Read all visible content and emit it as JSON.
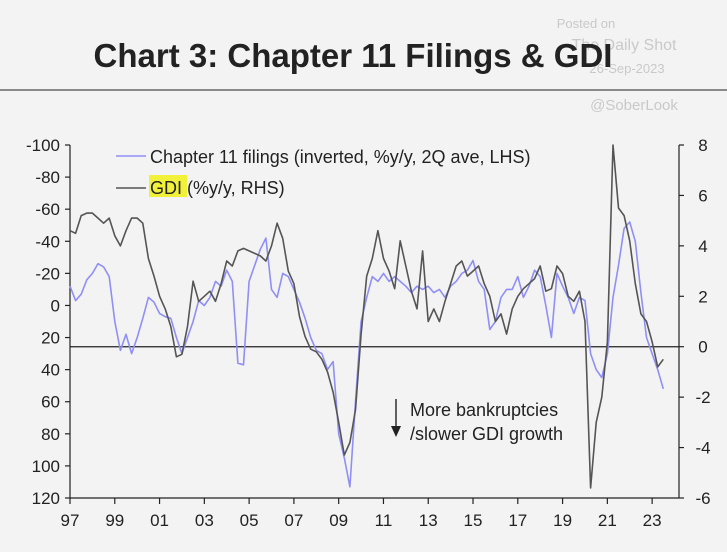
{
  "header": {
    "title": "Chart 3: Chapter 11 Filings & GDI",
    "watermark_line1": "Posted on",
    "watermark_line2": "The Daily Shot",
    "watermark_line3": "26-Sep-2023",
    "credit": "@SoberLook"
  },
  "chart_data": {
    "type": "line",
    "title": "Chart 3: Chapter 11 Filings & GDI",
    "x_tick_labels": [
      "97",
      "99",
      "01",
      "03",
      "05",
      "07",
      "09",
      "11",
      "13",
      "15",
      "17",
      "19",
      "21",
      "23"
    ],
    "x_ticks": [
      1997,
      1999,
      2001,
      2003,
      2005,
      2007,
      2009,
      2011,
      2013,
      2015,
      2017,
      2019,
      2021,
      2023
    ],
    "xlim": [
      1997,
      2024.2
    ],
    "left_axis": {
      "ylim": [
        -100,
        120
      ],
      "inverted": true,
      "ticks": [
        -100,
        -80,
        -60,
        -40,
        -20,
        0,
        20,
        40,
        60,
        80,
        100,
        120
      ],
      "tick_labels": [
        "-100",
        "-80",
        "-60",
        "-40",
        "-20",
        "0",
        "20",
        "40",
        "60",
        "80",
        "100",
        "120"
      ]
    },
    "right_axis": {
      "ylim": [
        -6,
        8
      ],
      "ticks": [
        -6,
        -4,
        -2,
        0,
        2,
        4,
        6,
        8
      ],
      "tick_labels": [
        "-6",
        "-4",
        "-2",
        "0",
        "2",
        "4",
        "6",
        "8"
      ]
    },
    "zero_line_right": 0,
    "series": [
      {
        "name": "Chapter 11 filings (inverted, %y/y, 2Q ave, LHS)",
        "axis": "left",
        "color": "#8f8ff5",
        "points": [
          [
            1997.0,
            -12
          ],
          [
            1997.25,
            -3
          ],
          [
            1997.5,
            -7
          ],
          [
            1997.75,
            -16
          ],
          [
            1998.0,
            -20
          ],
          [
            1998.25,
            -26
          ],
          [
            1998.5,
            -24
          ],
          [
            1998.75,
            -18
          ],
          [
            1999.0,
            10
          ],
          [
            1999.25,
            28
          ],
          [
            1999.5,
            18
          ],
          [
            1999.75,
            30
          ],
          [
            2000.0,
            20
          ],
          [
            2000.25,
            8
          ],
          [
            2000.5,
            -5
          ],
          [
            2000.75,
            -2
          ],
          [
            2001.0,
            5
          ],
          [
            2001.25,
            7
          ],
          [
            2001.5,
            8
          ],
          [
            2001.75,
            20
          ],
          [
            2002.0,
            30
          ],
          [
            2002.25,
            20
          ],
          [
            2002.5,
            10
          ],
          [
            2002.75,
            -3
          ],
          [
            2003.0,
            0
          ],
          [
            2003.25,
            -5
          ],
          [
            2003.5,
            -15
          ],
          [
            2003.75,
            -12
          ],
          [
            2004.0,
            -22
          ],
          [
            2004.25,
            -15
          ],
          [
            2004.5,
            36
          ],
          [
            2004.75,
            37
          ],
          [
            2005.0,
            -15
          ],
          [
            2005.25,
            -25
          ],
          [
            2005.5,
            -35
          ],
          [
            2005.75,
            -42
          ],
          [
            2006.0,
            -10
          ],
          [
            2006.25,
            -5
          ],
          [
            2006.5,
            -20
          ],
          [
            2006.75,
            -18
          ],
          [
            2007.0,
            -10
          ],
          [
            2007.25,
            -2
          ],
          [
            2007.5,
            8
          ],
          [
            2007.75,
            20
          ],
          [
            2008.0,
            28
          ],
          [
            2008.25,
            30
          ],
          [
            2008.5,
            40
          ],
          [
            2008.75,
            35
          ],
          [
            2009.0,
            80
          ],
          [
            2009.25,
            95
          ],
          [
            2009.5,
            113
          ],
          [
            2009.75,
            60
          ],
          [
            2010.0,
            10
          ],
          [
            2010.25,
            -5
          ],
          [
            2010.5,
            -18
          ],
          [
            2010.75,
            -15
          ],
          [
            2011.0,
            -20
          ],
          [
            2011.25,
            -15
          ],
          [
            2011.5,
            -18
          ],
          [
            2011.75,
            -15
          ],
          [
            2012.0,
            -12
          ],
          [
            2012.25,
            -8
          ],
          [
            2012.5,
            -12
          ],
          [
            2012.75,
            -10
          ],
          [
            2013.0,
            -12
          ],
          [
            2013.25,
            -8
          ],
          [
            2013.5,
            -10
          ],
          [
            2013.75,
            -5
          ],
          [
            2014.0,
            -12
          ],
          [
            2014.25,
            -15
          ],
          [
            2014.5,
            -20
          ],
          [
            2014.75,
            -22
          ],
          [
            2015.0,
            -28
          ],
          [
            2015.25,
            -15
          ],
          [
            2015.5,
            -10
          ],
          [
            2015.75,
            15
          ],
          [
            2016.0,
            10
          ],
          [
            2016.25,
            -5
          ],
          [
            2016.5,
            -10
          ],
          [
            2016.75,
            -10
          ],
          [
            2017.0,
            -18
          ],
          [
            2017.25,
            -5
          ],
          [
            2017.5,
            -12
          ],
          [
            2017.75,
            -22
          ],
          [
            2018.0,
            -18
          ],
          [
            2018.25,
            0
          ],
          [
            2018.5,
            20
          ],
          [
            2018.75,
            -20
          ],
          [
            2019.0,
            -12
          ],
          [
            2019.25,
            -5
          ],
          [
            2019.5,
            5
          ],
          [
            2019.75,
            -5
          ],
          [
            2020.0,
            -3
          ],
          [
            2020.25,
            30
          ],
          [
            2020.5,
            40
          ],
          [
            2020.75,
            45
          ],
          [
            2021.0,
            30
          ],
          [
            2021.25,
            -5
          ],
          [
            2021.5,
            -25
          ],
          [
            2021.75,
            -48
          ],
          [
            2022.0,
            -52
          ],
          [
            2022.25,
            -40
          ],
          [
            2022.5,
            -8
          ],
          [
            2022.75,
            20
          ],
          [
            2023.0,
            30
          ],
          [
            2023.25,
            40
          ],
          [
            2023.5,
            52
          ]
        ]
      },
      {
        "name": "GDI (%y/y, RHS)",
        "axis": "right",
        "color": "#555555",
        "points": [
          [
            1997.0,
            4.6
          ],
          [
            1997.25,
            4.5
          ],
          [
            1997.5,
            5.2
          ],
          [
            1997.75,
            5.3
          ],
          [
            1998.0,
            5.3
          ],
          [
            1998.25,
            5.1
          ],
          [
            1998.5,
            4.9
          ],
          [
            1998.75,
            5.1
          ],
          [
            1999.0,
            4.4
          ],
          [
            1999.25,
            4.0
          ],
          [
            1999.5,
            4.6
          ],
          [
            1999.75,
            5.1
          ],
          [
            2000.0,
            5.1
          ],
          [
            2000.25,
            4.9
          ],
          [
            2000.5,
            3.5
          ],
          [
            2000.75,
            2.8
          ],
          [
            2001.0,
            2.0
          ],
          [
            2001.25,
            1.5
          ],
          [
            2001.5,
            0.8
          ],
          [
            2001.75,
            -0.4
          ],
          [
            2002.0,
            -0.3
          ],
          [
            2002.25,
            0.8
          ],
          [
            2002.5,
            2.6
          ],
          [
            2002.75,
            1.8
          ],
          [
            2003.0,
            2.0
          ],
          [
            2003.25,
            2.2
          ],
          [
            2003.5,
            1.8
          ],
          [
            2003.75,
            2.5
          ],
          [
            2004.0,
            3.4
          ],
          [
            2004.25,
            3.2
          ],
          [
            2004.5,
            3.8
          ],
          [
            2004.75,
            3.9
          ],
          [
            2005.0,
            3.8
          ],
          [
            2005.25,
            3.7
          ],
          [
            2005.5,
            3.6
          ],
          [
            2005.75,
            3.4
          ],
          [
            2006.0,
            4.0
          ],
          [
            2006.25,
            4.9
          ],
          [
            2006.5,
            4.3
          ],
          [
            2006.75,
            3.0
          ],
          [
            2007.0,
            2.5
          ],
          [
            2007.25,
            1.2
          ],
          [
            2007.5,
            0.4
          ],
          [
            2007.75,
            -0.1
          ],
          [
            2008.0,
            -0.2
          ],
          [
            2008.25,
            -0.5
          ],
          [
            2008.5,
            -1.0
          ],
          [
            2008.75,
            -1.8
          ],
          [
            2009.0,
            -3.0
          ],
          [
            2009.25,
            -4.3
          ],
          [
            2009.5,
            -3.8
          ],
          [
            2009.75,
            -2.5
          ],
          [
            2010.0,
            0.5
          ],
          [
            2010.25,
            2.8
          ],
          [
            2010.5,
            3.5
          ],
          [
            2010.75,
            4.6
          ],
          [
            2011.0,
            3.5
          ],
          [
            2011.25,
            3.0
          ],
          [
            2011.5,
            2.3
          ],
          [
            2011.75,
            4.2
          ],
          [
            2012.0,
            3.2
          ],
          [
            2012.25,
            2.2
          ],
          [
            2012.5,
            1.5
          ],
          [
            2012.75,
            3.8
          ],
          [
            2013.0,
            1.0
          ],
          [
            2013.25,
            1.5
          ],
          [
            2013.5,
            1.0
          ],
          [
            2013.75,
            1.8
          ],
          [
            2014.0,
            2.5
          ],
          [
            2014.25,
            3.2
          ],
          [
            2014.5,
            3.4
          ],
          [
            2014.75,
            2.8
          ],
          [
            2015.0,
            3.0
          ],
          [
            2015.25,
            3.2
          ],
          [
            2015.5,
            2.5
          ],
          [
            2015.75,
            2.0
          ],
          [
            2016.0,
            1.0
          ],
          [
            2016.25,
            1.3
          ],
          [
            2016.5,
            0.5
          ],
          [
            2016.75,
            1.5
          ],
          [
            2017.0,
            2.0
          ],
          [
            2017.25,
            2.3
          ],
          [
            2017.5,
            2.5
          ],
          [
            2017.75,
            2.7
          ],
          [
            2018.0,
            3.2
          ],
          [
            2018.25,
            2.2
          ],
          [
            2018.5,
            2.3
          ],
          [
            2018.75,
            3.2
          ],
          [
            2019.0,
            2.9
          ],
          [
            2019.25,
            2.0
          ],
          [
            2019.5,
            1.8
          ],
          [
            2019.75,
            2.2
          ],
          [
            2020.0,
            1.0
          ],
          [
            2020.25,
            -5.6
          ],
          [
            2020.5,
            -3.0
          ],
          [
            2020.75,
            -2.0
          ],
          [
            2021.0,
            0.2
          ],
          [
            2021.25,
            8.0
          ],
          [
            2021.5,
            5.5
          ],
          [
            2021.75,
            5.2
          ],
          [
            2022.0,
            4.2
          ],
          [
            2022.25,
            2.5
          ],
          [
            2022.5,
            1.3
          ],
          [
            2022.75,
            1.0
          ],
          [
            2023.0,
            0.2
          ],
          [
            2023.25,
            -0.8
          ],
          [
            2023.5,
            -0.5
          ]
        ]
      }
    ],
    "legend": {
      "placement": "top-left",
      "highlight_text": "GDI",
      "highlight_color": "#f2f13a"
    },
    "annotation": {
      "line1": "More bankruptcies",
      "line2": "/slower GDI growth",
      "arrow": "down"
    }
  }
}
